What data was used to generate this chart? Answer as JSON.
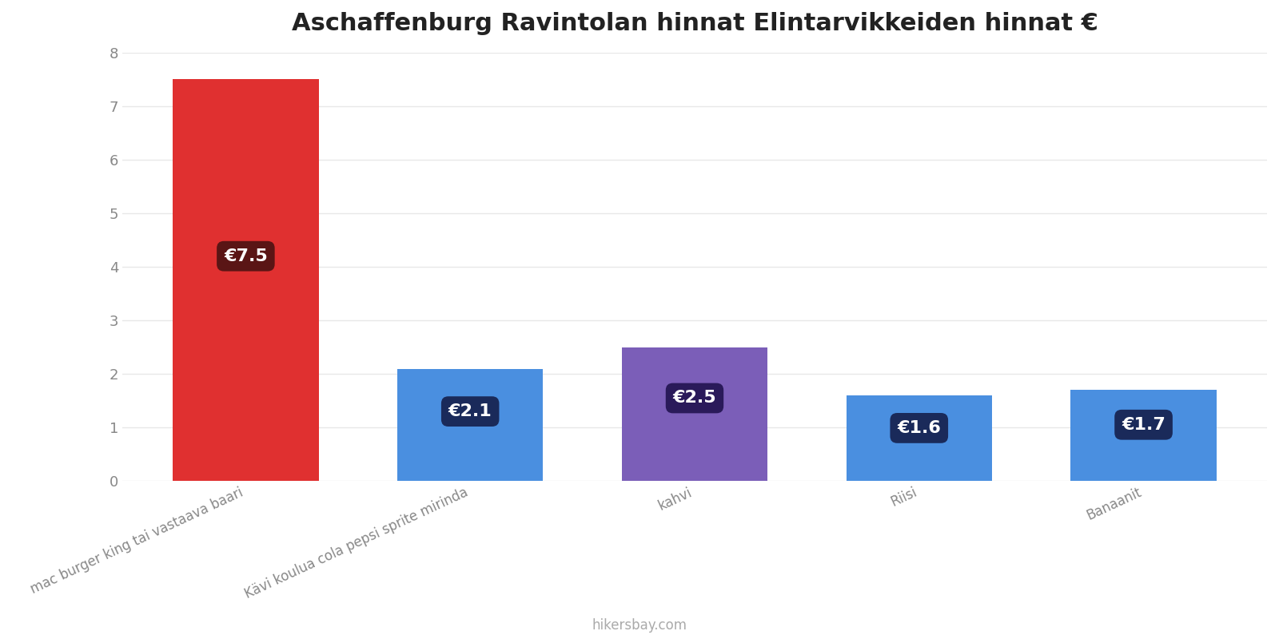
{
  "title": "Aschaffenburg Ravintolan hinnat Elintarvikkeiden hinnat €",
  "categories": [
    "mac burger king tai vastaava baari",
    "Kävi koulua cola pepsi sprite mirinda",
    "kahvi",
    "Riisi",
    "Banaanit"
  ],
  "values": [
    7.5,
    2.1,
    2.5,
    1.6,
    1.7
  ],
  "bar_colors": [
    "#e03030",
    "#4a8fe0",
    "#7b5eb8",
    "#4a8fe0",
    "#4a8fe0"
  ],
  "label_texts": [
    "€7.5",
    "€2.1",
    "€2.5",
    "€1.6",
    "€1.7"
  ],
  "label_bg_colors": [
    "#5a1515",
    "#1a2a5a",
    "#2a1a5a",
    "#1a2a5a",
    "#1a2a5a"
  ],
  "label_text_color": "#ffffff",
  "ylim": [
    0,
    8
  ],
  "yticks": [
    0,
    1,
    2,
    3,
    4,
    5,
    6,
    7,
    8
  ],
  "title_fontsize": 22,
  "tick_fontsize": 13,
  "label_fontsize": 16,
  "footer_text": "hikersbay.com",
  "footer_color": "#aaaaaa",
  "background_color": "#ffffff",
  "grid_color": "#e8e8e8"
}
